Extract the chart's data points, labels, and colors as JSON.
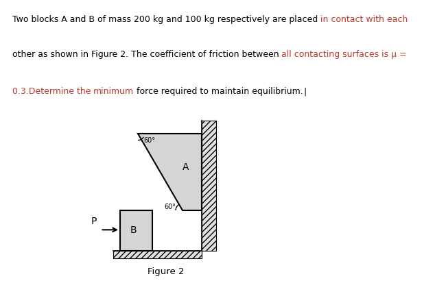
{
  "bg_color": "#ffffff",
  "text_color_black": "#000000",
  "text_color_red": "#c0392b",
  "figure_label": "Figure 2",
  "block_A_label": "A",
  "block_B_label": "B",
  "force_label": "P",
  "hatch_pattern": "////",
  "fontsize_text": 9.0,
  "fontsize_label": 9.5,
  "angle_label": "60°",
  "line1_segments": [
    {
      "text": "Two blocks A and B of mass 200 kg and 100 kg respectively are placed ",
      "color": "black"
    },
    {
      "text": "in contact with each",
      "color": "red"
    }
  ],
  "line2_segments": [
    {
      "text": "other as shown in Figure 2. The coefficient of friction between ",
      "color": "black"
    },
    {
      "text": "all contacting surfaces is μ =",
      "color": "red"
    }
  ],
  "line3_segments": [
    {
      "text": "0.3.Determine the ",
      "color": "red"
    },
    {
      "text": "minimum",
      "color": "red"
    },
    {
      "text": " force required to maintain equilibrium.",
      "color": "black"
    },
    {
      "text": "|",
      "color": "black"
    }
  ]
}
